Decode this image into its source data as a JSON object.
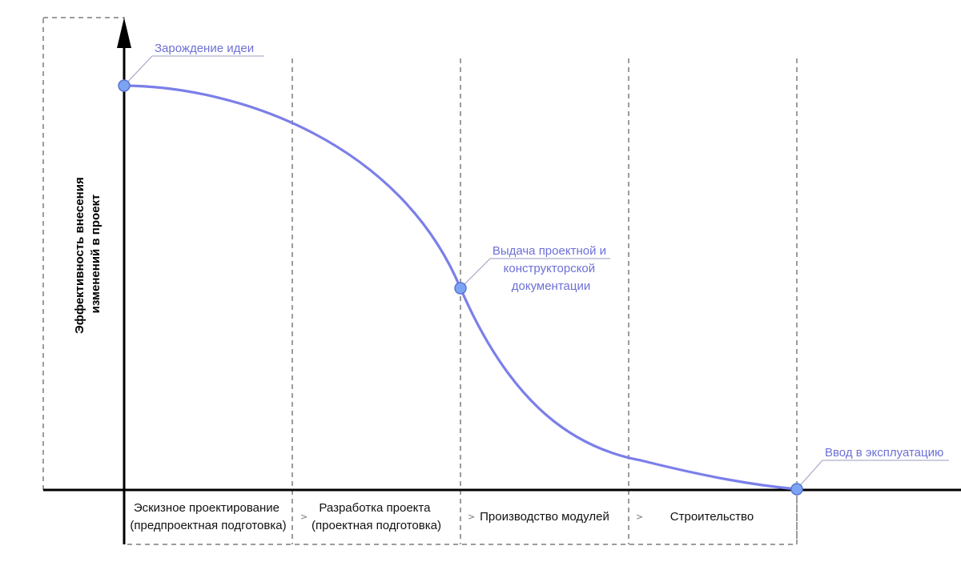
{
  "diagram": {
    "type": "line",
    "y_axis_label_lines": [
      "Эффективность внесения",
      "изменений в проект"
    ],
    "curve_color": "#7b7fe8",
    "marker_color": "#7da4f2",
    "callout_color": "#6d70d6",
    "milestones": [
      {
        "label_lines": [
          "Зарождение идеи"
        ]
      },
      {
        "label_lines": [
          "Выдача проектной и",
          "конструкторской",
          "документации"
        ]
      },
      {
        "label_lines": [
          "Ввод в эксплуатацию"
        ]
      }
    ],
    "stages": [
      {
        "lines": [
          "Эскизное проектирование",
          "(предпроектная подготовка)"
        ]
      },
      {
        "lines": [
          "Разработка проекта",
          "(проектная подготовка)"
        ]
      },
      {
        "lines": [
          "Производство модулей"
        ]
      },
      {
        "lines": [
          "Строительство"
        ]
      }
    ],
    "stage_separator_glyph": ">"
  }
}
